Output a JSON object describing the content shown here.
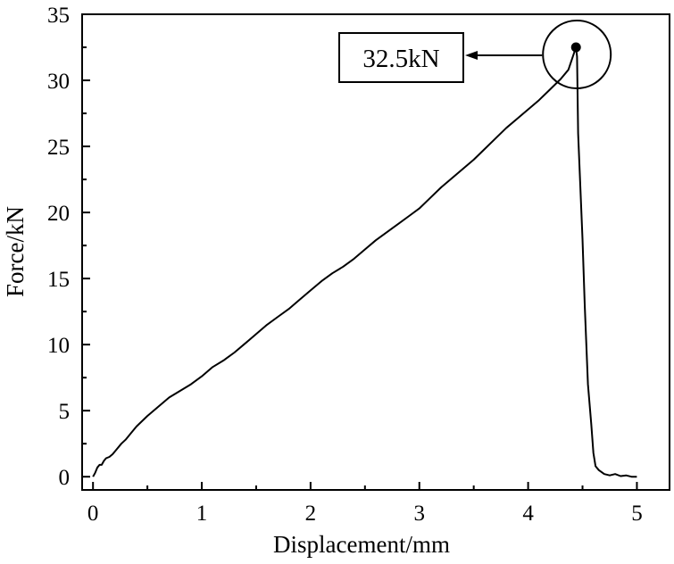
{
  "chart_data": {
    "type": "line",
    "title": "",
    "xlabel": "Displacement/mm",
    "ylabel": "Force/kN",
    "xlim": [
      -0.1,
      5.3
    ],
    "ylim": [
      -1,
      35
    ],
    "xticks": [
      0,
      1,
      2,
      3,
      4,
      5
    ],
    "yticks": [
      0,
      5,
      10,
      15,
      20,
      25,
      30,
      35
    ],
    "x_tick_labels": [
      "0",
      "1",
      "2",
      "3",
      "4",
      "5"
    ],
    "y_tick_labels": [
      "0",
      "5",
      "10",
      "15",
      "20",
      "25",
      "30",
      "35"
    ],
    "grid": false,
    "legend": "none",
    "line_color": "#000000",
    "series": [
      {
        "x": [
          0.0,
          0.02,
          0.04,
          0.06,
          0.08,
          0.1,
          0.12,
          0.15,
          0.18,
          0.22,
          0.26,
          0.3,
          0.35,
          0.4,
          0.45,
          0.5,
          0.6,
          0.7,
          0.8,
          0.9,
          1.0,
          1.1,
          1.2,
          1.3,
          1.4,
          1.5,
          1.6,
          1.7,
          1.8,
          1.9,
          2.0,
          2.1,
          2.2,
          2.3,
          2.4,
          2.5,
          2.6,
          2.7,
          2.8,
          2.9,
          3.0,
          3.1,
          3.2,
          3.3,
          3.4,
          3.5,
          3.6,
          3.7,
          3.8,
          3.9,
          4.0,
          4.1,
          4.2,
          4.3,
          4.37,
          4.44,
          4.45,
          4.46,
          4.5,
          4.52,
          4.55,
          4.58,
          4.6,
          4.62,
          4.65,
          4.7,
          4.75,
          4.8,
          4.85,
          4.9,
          4.95,
          5.0
        ],
        "y": [
          0.0,
          0.3,
          0.7,
          0.9,
          0.9,
          1.2,
          1.4,
          1.5,
          1.7,
          2.1,
          2.5,
          2.8,
          3.3,
          3.8,
          4.2,
          4.6,
          5.3,
          6.0,
          6.5,
          7.0,
          7.6,
          8.3,
          8.8,
          9.4,
          10.1,
          10.8,
          11.5,
          12.1,
          12.7,
          13.4,
          14.1,
          14.8,
          15.4,
          15.9,
          16.5,
          17.2,
          17.9,
          18.5,
          19.1,
          19.7,
          20.3,
          21.1,
          21.9,
          22.6,
          23.3,
          24.0,
          24.8,
          25.6,
          26.4,
          27.1,
          27.8,
          28.5,
          29.3,
          30.1,
          30.8,
          32.5,
          31.8,
          26.0,
          18.0,
          13.0,
          7.0,
          4.0,
          1.8,
          0.8,
          0.5,
          0.2,
          0.1,
          0.2,
          0.05,
          0.1,
          0.0,
          0.0
        ]
      }
    ],
    "peak": {
      "x": 4.44,
      "y": 32.5,
      "label": "32.5kN"
    }
  }
}
